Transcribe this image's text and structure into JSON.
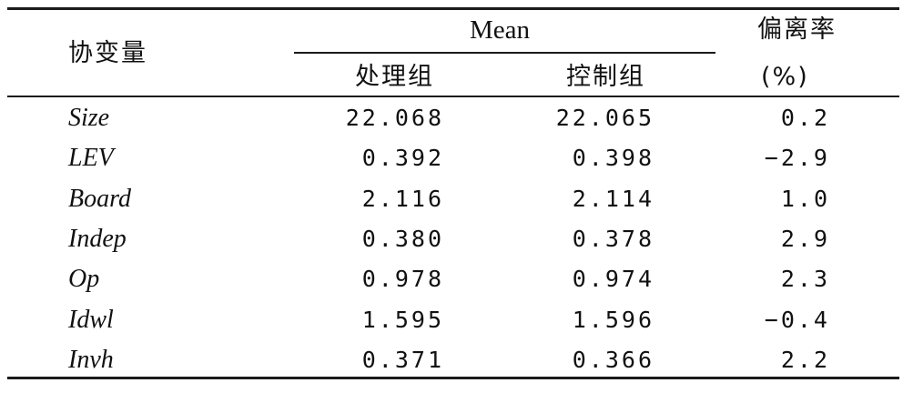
{
  "table": {
    "header": {
      "covariate": "协变量",
      "mean": "Mean",
      "treated": "处理组",
      "control": "控制组",
      "deviation": "偏离率",
      "deviation_unit": "(%)"
    },
    "rows": [
      {
        "var": "Size",
        "treated": "22.068",
        "control": "22.065",
        "deviation": "0.2"
      },
      {
        "var": "LEV",
        "treated": "0.392",
        "control": "0.398",
        "deviation": "−2.9"
      },
      {
        "var": "Board",
        "treated": "2.116",
        "control": "2.114",
        "deviation": "1.0"
      },
      {
        "var": "Indep",
        "treated": "0.380",
        "control": "0.378",
        "deviation": "2.9"
      },
      {
        "var": "Op",
        "treated": "0.978",
        "control": "0.974",
        "deviation": "2.3"
      },
      {
        "var": "Idwl",
        "treated": "1.595",
        "control": "1.596",
        "deviation": "−0.4"
      },
      {
        "var": "Invh",
        "treated": "0.371",
        "control": "0.366",
        "deviation": "2.2"
      }
    ]
  }
}
